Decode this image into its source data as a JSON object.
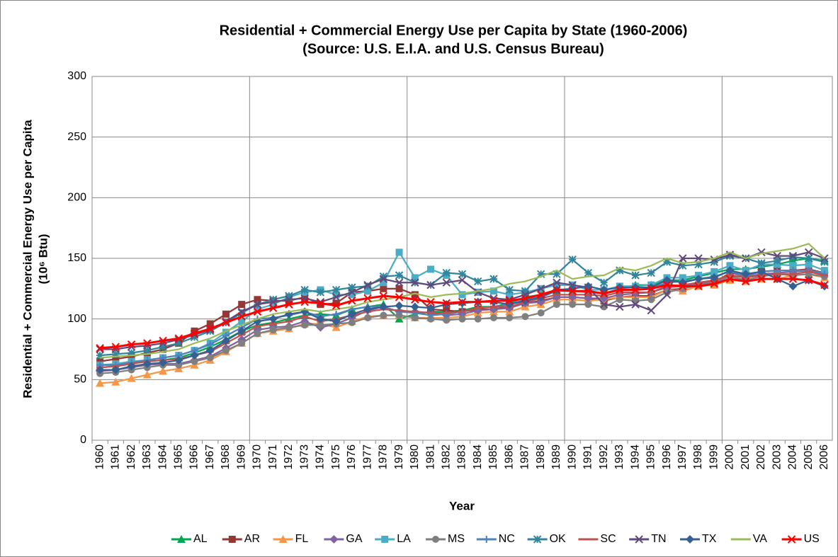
{
  "chart_data": {
    "type": "line",
    "title": "Residential + Commercial Energy Use per Capita by State (1960-2006)",
    "subtitle": "(Source: U.S. E.I.A. and U.S. Census Bureau)",
    "x_label": "Year",
    "y_label": "Residential + Commercial Energy Use per Capita",
    "y_label_unit": "(10⁶ Btu)",
    "categories": [
      "1960",
      "1961",
      "1962",
      "1963",
      "1964",
      "1965",
      "1966",
      "1967",
      "1968",
      "1969",
      "1970",
      "1971",
      "1972",
      "1973",
      "1974",
      "1975",
      "1976",
      "1977",
      "1978",
      "1979",
      "1980",
      "1981",
      "1982",
      "1983",
      "1984",
      "1985",
      "1986",
      "1987",
      "1988",
      "1989",
      "1990",
      "1991",
      "1992",
      "1993",
      "1994",
      "1995",
      "1996",
      "1997",
      "1998",
      "1999",
      "2000",
      "2001",
      "2002",
      "2003",
      "2004",
      "2005",
      "2006"
    ],
    "ylim": [
      0,
      300
    ],
    "yticks": [
      0,
      50,
      100,
      150,
      200,
      250,
      300
    ],
    "grid": true,
    "x_grid_every": 10,
    "legend": "bottom",
    "series": [
      {
        "name": "AL",
        "color": "#00a651",
        "marker": "triangle",
        "values": [
          60,
          61,
          63,
          65,
          66,
          68,
          72,
          77,
          83,
          90,
          95,
          97,
          100,
          103,
          104,
          103,
          108,
          110,
          112,
          100,
          104,
          106,
          106,
          107,
          110,
          110,
          113,
          118,
          120,
          123,
          123,
          122,
          121,
          125,
          128,
          128,
          132,
          132,
          135,
          138,
          141,
          141,
          143,
          145,
          148,
          150,
          148
        ]
      },
      {
        "name": "AR",
        "color": "#953735",
        "marker": "square",
        "values": [
          65,
          67,
          69,
          72,
          75,
          80,
          90,
          96,
          104,
          112,
          116,
          115,
          115,
          118,
          112,
          113,
          122,
          123,
          125,
          125,
          120,
          108,
          107,
          106,
          108,
          108,
          110,
          113,
          115,
          118,
          118,
          117,
          115,
          118,
          119,
          119,
          124,
          125,
          128,
          130,
          138,
          136,
          139,
          140,
          140,
          141,
          138
        ]
      },
      {
        "name": "FL",
        "color": "#f79646",
        "marker": "triangle",
        "values": [
          47,
          48,
          51,
          54,
          57,
          59,
          62,
          66,
          73,
          80,
          88,
          90,
          92,
          96,
          96,
          93,
          98,
          102,
          103,
          103,
          101,
          101,
          101,
          102,
          105,
          106,
          106,
          110,
          112,
          116,
          116,
          115,
          116,
          118,
          118,
          118,
          124,
          123,
          127,
          128,
          132,
          131,
          133,
          133,
          136,
          137,
          134
        ]
      },
      {
        "name": "GA",
        "color": "#8064a2",
        "marker": "diamond",
        "values": [
          57,
          58,
          60,
          62,
          63,
          63,
          66,
          69,
          76,
          83,
          91,
          93,
          94,
          98,
          93,
          96,
          101,
          107,
          110,
          106,
          106,
          105,
          103,
          104,
          107,
          108,
          109,
          113,
          114,
          118,
          118,
          117,
          117,
          120,
          121,
          122,
          126,
          127,
          129,
          131,
          136,
          135,
          137,
          138,
          139,
          140,
          138
        ]
      },
      {
        "name": "LA",
        "color": "#4bacc6",
        "marker": "square",
        "values": [
          62,
          63,
          65,
          66,
          68,
          70,
          74,
          80,
          89,
          98,
          108,
          112,
          118,
          122,
          124,
          120,
          120,
          123,
          130,
          155,
          134,
          141,
          136,
          120,
          122,
          123,
          120,
          122,
          125,
          128,
          128,
          124,
          124,
          127,
          127,
          128,
          134,
          134,
          136,
          139,
          144,
          140,
          145,
          145,
          144,
          145,
          140
        ]
      },
      {
        "name": "MS",
        "color": "#7f7f7f",
        "marker": "circle",
        "values": [
          55,
          56,
          58,
          60,
          62,
          62,
          65,
          68,
          74,
          80,
          88,
          91,
          93,
          95,
          95,
          96,
          97,
          101,
          103,
          103,
          101,
          100,
          99,
          100,
          100,
          101,
          101,
          102,
          105,
          112,
          112,
          112,
          110,
          116,
          115,
          116,
          122,
          125,
          128,
          130,
          135,
          132,
          135,
          137,
          136,
          137,
          135
        ]
      },
      {
        "name": "NC",
        "color": "#4f81bd",
        "marker": "plus",
        "values": [
          62,
          62,
          64,
          66,
          68,
          70,
          74,
          79,
          86,
          93,
          100,
          101,
          103,
          106,
          102,
          104,
          108,
          110,
          110,
          106,
          105,
          103,
          104,
          106,
          109,
          110,
          112,
          116,
          118,
          123,
          123,
          122,
          121,
          125,
          124,
          125,
          130,
          131,
          133,
          135,
          139,
          136,
          139,
          140,
          140,
          140,
          137
        ]
      },
      {
        "name": "OK",
        "color": "#31859c",
        "marker": "star",
        "values": [
          70,
          71,
          72,
          74,
          77,
          80,
          85,
          90,
          97,
          105,
          112,
          116,
          119,
          124,
          122,
          124,
          126,
          127,
          135,
          136,
          130,
          128,
          138,
          137,
          131,
          133,
          124,
          123,
          137,
          137,
          149,
          138,
          130,
          140,
          136,
          138,
          147,
          144,
          145,
          147,
          152,
          150,
          146,
          148,
          151,
          150,
          147
        ]
      },
      {
        "name": "SC",
        "color": "#c0504d",
        "marker": "dash",
        "values": [
          60,
          61,
          63,
          65,
          66,
          67,
          70,
          73,
          80,
          87,
          94,
          96,
          98,
          102,
          98,
          100,
          103,
          106,
          108,
          107,
          106,
          105,
          105,
          106,
          109,
          110,
          110,
          114,
          117,
          120,
          120,
          120,
          119,
          122,
          122,
          122,
          127,
          128,
          130,
          132,
          136,
          134,
          136,
          137,
          137,
          139,
          136
        ]
      },
      {
        "name": "TN",
        "color": "#604a7b",
        "marker": "x",
        "values": [
          75,
          75,
          77,
          78,
          80,
          83,
          87,
          91,
          98,
          106,
          112,
          114,
          116,
          117,
          114,
          118,
          122,
          128,
          133,
          130,
          130,
          128,
          130,
          132,
          122,
          117,
          116,
          120,
          125,
          130,
          128,
          126,
          112,
          110,
          112,
          107,
          120,
          150,
          150,
          149,
          153,
          150,
          155,
          152,
          152,
          155,
          150
        ]
      },
      {
        "name": "TX",
        "color": "#376092",
        "marker": "diamond",
        "values": [
          58,
          58,
          61,
          63,
          64,
          66,
          70,
          74,
          82,
          90,
          98,
          100,
          104,
          106,
          100,
          98,
          104,
          108,
          110,
          111,
          110,
          109,
          112,
          113,
          114,
          114,
          112,
          115,
          118,
          124,
          125,
          127,
          124,
          126,
          126,
          126,
          132,
          130,
          133,
          134,
          140,
          137,
          139,
          133,
          127,
          132,
          127
        ]
      },
      {
        "name": "VA",
        "color": "#9bbb59",
        "marker": "none",
        "values": [
          68,
          69,
          70,
          71,
          73,
          75,
          80,
          84,
          90,
          95,
          100,
          104,
          106,
          108,
          106,
          108,
          110,
          114,
          116,
          118,
          121,
          118,
          120,
          121,
          123,
          125,
          129,
          131,
          135,
          140,
          133,
          135,
          136,
          142,
          140,
          144,
          150,
          146,
          147,
          150,
          155,
          150,
          154,
          156,
          158,
          162,
          150
        ]
      },
      {
        "name": "US",
        "color": "#ff0000",
        "marker": "x",
        "values": [
          76,
          77,
          79,
          80,
          82,
          84,
          88,
          92,
          97,
          102,
          106,
          109,
          112,
          114,
          113,
          111,
          115,
          117,
          119,
          118,
          116,
          114,
          113,
          114,
          114,
          115,
          115,
          117,
          120,
          124,
          123,
          123,
          121,
          124,
          124,
          125,
          128,
          127,
          127,
          129,
          133,
          131,
          133,
          133,
          133,
          132,
          128
        ]
      }
    ]
  }
}
